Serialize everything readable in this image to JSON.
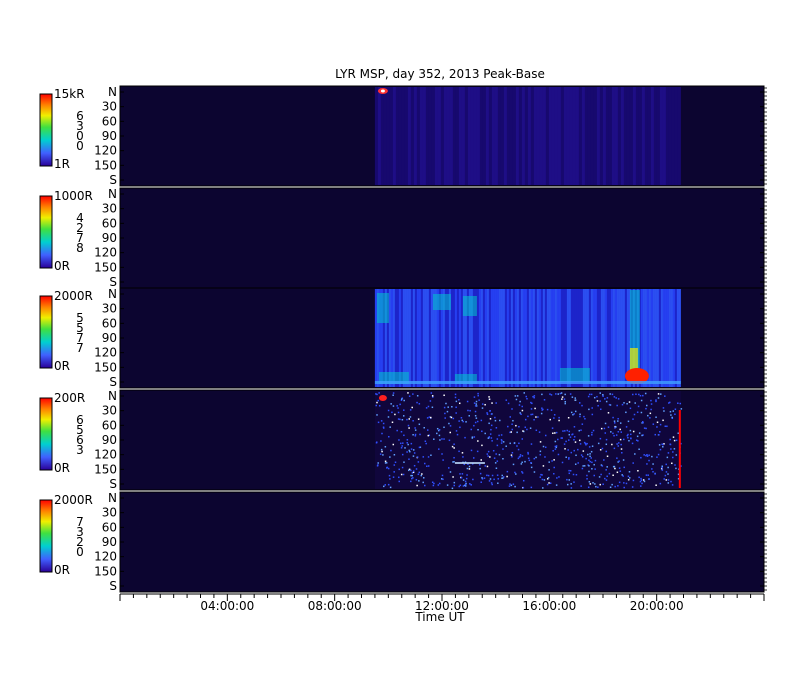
{
  "chart_data": {
    "type": "heatmap",
    "title": "LYR MSP, day 352, 2013 Peak-Base",
    "xlabel": "Time UT",
    "x_range_hours": [
      0,
      24
    ],
    "x_ticks": [
      {
        "hour": 4,
        "label": "04:00:00"
      },
      {
        "hour": 8,
        "label": "08:00:00"
      },
      {
        "hour": 12,
        "label": "12:00:00"
      },
      {
        "hour": 16,
        "label": "16:00:00"
      },
      {
        "hour": 20,
        "label": "20:00:00"
      }
    ],
    "y_ticks": [
      "N",
      "30",
      "60",
      "90",
      "120",
      "150",
      "S"
    ],
    "data_coverage_hours": [
      9.5,
      20.9
    ],
    "background_color": "#0c0530",
    "colormap": [
      "#2a0098",
      "#4060ff",
      "#00d0d0",
      "#40e040",
      "#f0f000",
      "#ff8000",
      "#ff0000"
    ],
    "panels": [
      {
        "scale_max": "15kR",
        "scale_min": "1R",
        "wavelength_digits": [
          "6",
          "3",
          "0",
          "0"
        ],
        "has_data": true,
        "intensity": "low"
      },
      {
        "scale_max": "1000R",
        "scale_min": "0R",
        "wavelength_digits": [
          "4",
          "2",
          "7",
          "8"
        ],
        "has_data": false,
        "intensity": "none"
      },
      {
        "scale_max": "2000R",
        "scale_min": "0R",
        "wavelength_digits": [
          "5",
          "5",
          "7",
          "7"
        ],
        "has_data": true,
        "intensity": "high"
      },
      {
        "scale_max": "200R",
        "scale_min": "0R",
        "wavelength_digits": [
          "6",
          "5",
          "6",
          "3"
        ],
        "has_data": true,
        "intensity": "noisy"
      },
      {
        "scale_max": "2000R",
        "scale_min": "0R",
        "wavelength_digits": [
          "7",
          "3",
          "2",
          "0"
        ],
        "has_data": false,
        "intensity": "none"
      }
    ]
  }
}
